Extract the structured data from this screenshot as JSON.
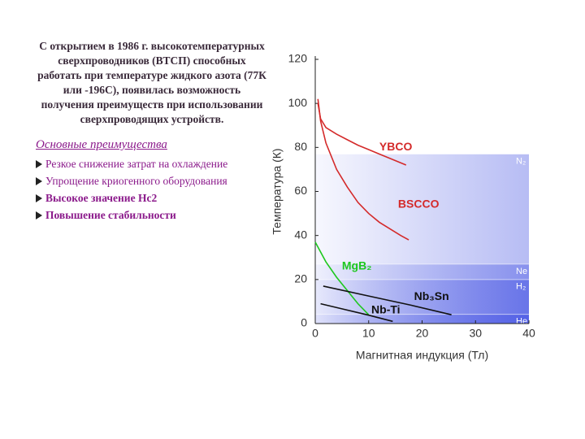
{
  "text": {
    "intro": "С открытием в 1986 г. высокотемпературных сверхпроводников (ВТСП) способных работать при температуре жидкого азота (77К или -196С), появилась возможность получения преимуществ при использовании сверхпроводящих устройств.",
    "advantages_title": "Основные преимущества",
    "advantages": [
      "Резкое снижение затрат на охлаждение",
      "Упрощение криогенного оборудования",
      "Высокое значение Нс2",
      "Повышение стабильности"
    ]
  },
  "chart_data": {
    "type": "line",
    "x_label": "Магнитная индукция (Тл)",
    "y_label": "Температура (К)",
    "xlim": [
      0,
      40
    ],
    "xticks": [
      0,
      10,
      20,
      30,
      40
    ],
    "ylim": [
      0,
      120
    ],
    "yticks": [
      0,
      20,
      40,
      60,
      80,
      100,
      120
    ],
    "series": [
      {
        "name": "YBCO",
        "color": "#d42a2a",
        "x": [
          0.5,
          1,
          2,
          4,
          6,
          8,
          10,
          12,
          14,
          17
        ],
        "values": [
          100,
          93,
          89,
          86,
          83.5,
          81,
          79,
          77,
          75,
          72
        ]
      },
      {
        "name": "BSCCO",
        "color": "#d42a2a",
        "x": [
          0.5,
          1,
          2,
          4,
          6,
          8,
          10,
          12,
          14,
          16,
          17.5
        ],
        "values": [
          102,
          92,
          82,
          70,
          62,
          55,
          50,
          46,
          43,
          40,
          38
        ]
      },
      {
        "name": "MgB₂",
        "color": "#1ec81e",
        "x": [
          0,
          2,
          4,
          6,
          8,
          10
        ],
        "values": [
          37,
          28,
          21,
          15,
          9,
          4
        ]
      },
      {
        "name": "Nb₃Sn",
        "color": "#111111",
        "x": [
          1.5,
          10,
          18,
          25.5
        ],
        "values": [
          17,
          12.5,
          8.3,
          4
        ]
      },
      {
        "name": "Nb-Ti",
        "color": "#111111",
        "x": [
          1,
          5,
          10,
          14.5
        ],
        "values": [
          9,
          6.7,
          3.8,
          1
        ]
      }
    ],
    "bands": [
      {
        "name": "N₂",
        "value": 77
      },
      {
        "name": "Ne",
        "value": 27
      },
      {
        "name": "H₂",
        "value": 20
      },
      {
        "name": "He",
        "value": 4.2
      }
    ]
  }
}
